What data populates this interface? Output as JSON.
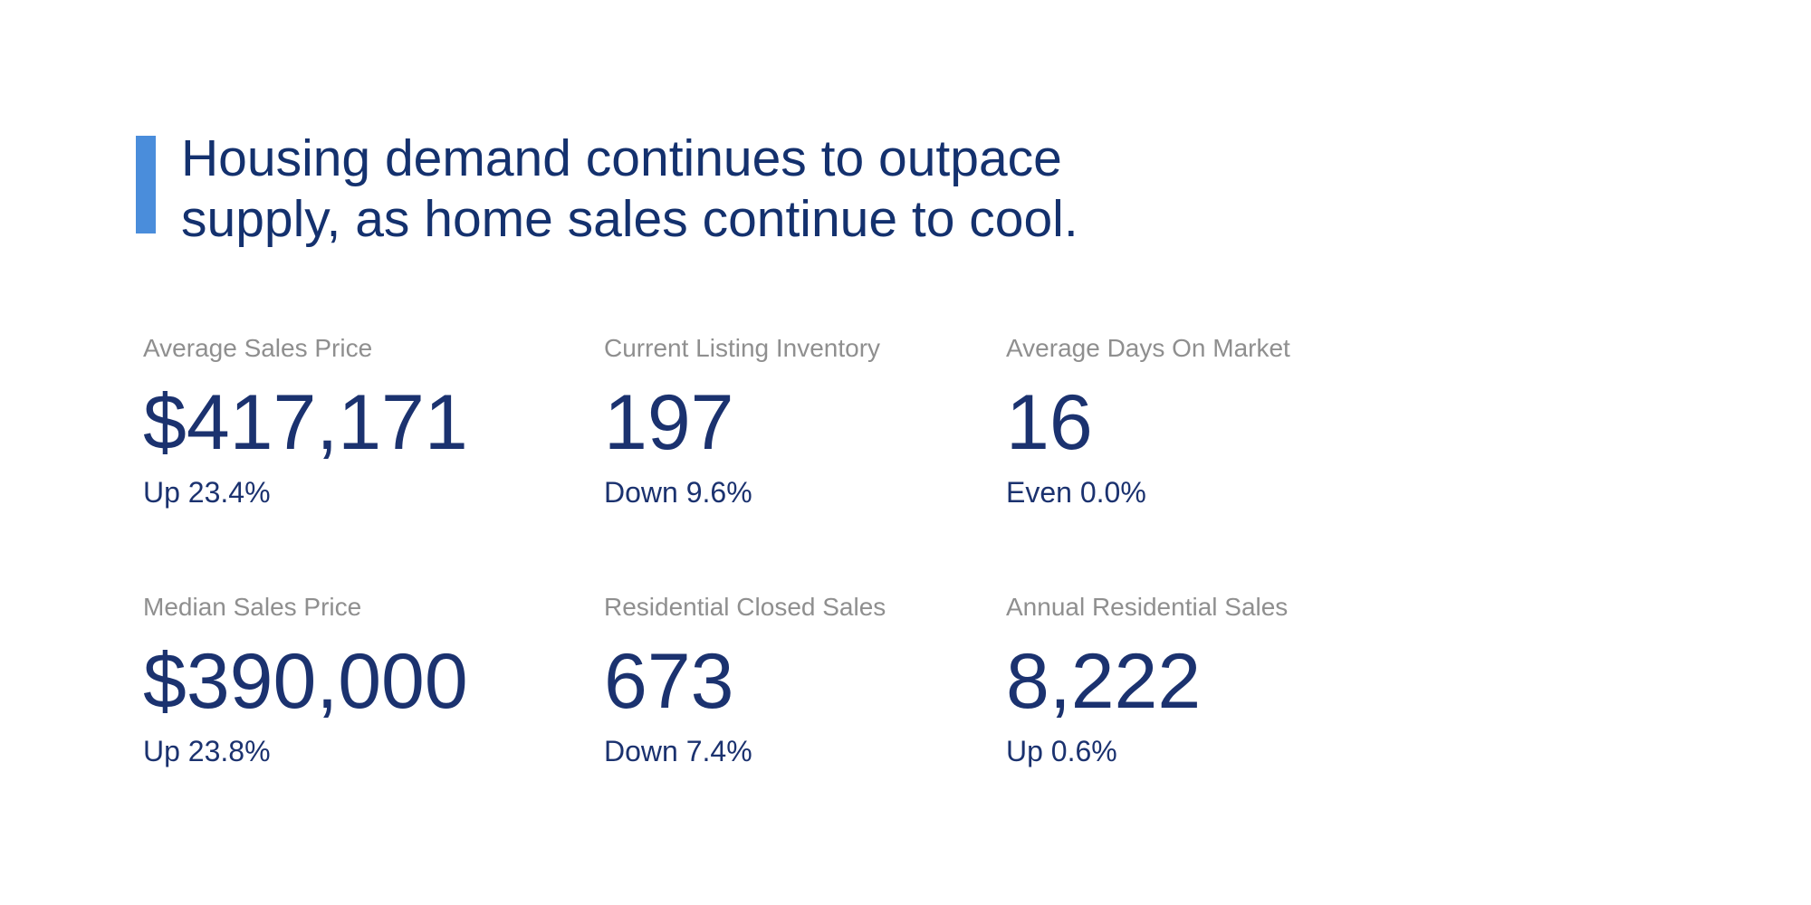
{
  "headline": {
    "line1": "Housing demand continues to outpace",
    "line2": "supply, as home sales continue to cool.",
    "accent_color": "#4a8ddb",
    "text_color": "#14316e"
  },
  "stats": [
    {
      "label": "Average Sales Price",
      "value": "$417,171",
      "change": "Up 23.4%"
    },
    {
      "label": "Current Listing Inventory",
      "value": "197",
      "change": "Down 9.6%"
    },
    {
      "label": "Average Days On Market",
      "value": "16",
      "change": "Even 0.0%"
    },
    {
      "label": "Median Sales Price",
      "value": "$390,000",
      "change": "Up 23.8%"
    },
    {
      "label": "Residential Closed Sales",
      "value": "673",
      "change": "Down 7.4%"
    },
    {
      "label": "Annual Residential Sales",
      "value": "8,222",
      "change": "Up 0.6%"
    }
  ],
  "colors": {
    "stat_value_navy": "#1b326f",
    "stat_label_gray": "#8f8f8f",
    "background": "#ffffff"
  }
}
